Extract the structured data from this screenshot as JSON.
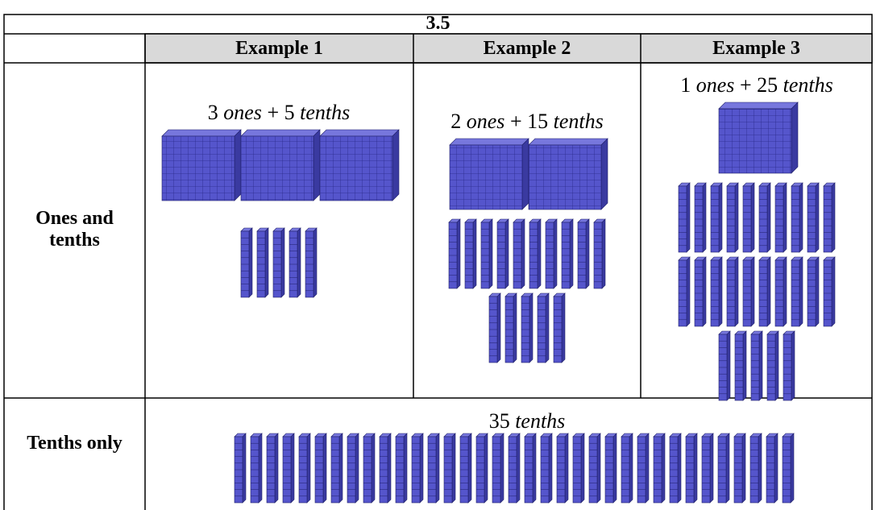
{
  "header": {
    "number": "3.5"
  },
  "labels": {
    "ones": "ones",
    "tenths": "tenths",
    "plus": "+"
  },
  "examples": [
    {
      "title": "Example 1",
      "ones": 3,
      "tenths": 5
    },
    {
      "title": "Example 2",
      "ones": 2,
      "tenths": 15
    },
    {
      "title": "Example 3",
      "ones": 1,
      "tenths": 25
    }
  ],
  "rows": {
    "ones_and_tenths": "Ones and tenths",
    "tenths_only": "Tenths only"
  },
  "tenths_only": {
    "tenths": 35
  }
}
